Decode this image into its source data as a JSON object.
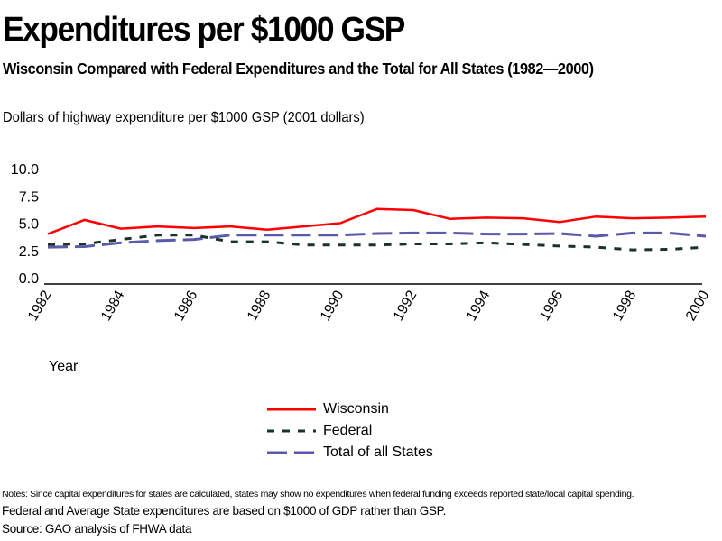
{
  "header": {
    "title": "Expenditures per $1000 GSP",
    "subtitle": "Wisconsin Compared with Federal Expenditures and the Total for All States (1982—2000)"
  },
  "footer": {
    "note1": "Notes: Since capital expenditures for states are calculated, states may show no expenditures when federal funding exceeds reported state/local capital spending.",
    "note2": "Federal and Average State expenditures are based on $1000 of GDP rather than GSP.",
    "source": "Source: GAO analysis of FHWA data"
  },
  "chart_data": {
    "type": "line",
    "title": "Expenditures per $1000 GSP",
    "subtitle": "Wisconsin Compared with Federal Expenditures and the Total for All States (1982—2000)",
    "ylabel": "Dollars of highway expenditure per $1000 GSP (2001 dollars)",
    "xlabel": "Year",
    "ylim": [
      0,
      10
    ],
    "yticks": [
      "0.0",
      "2.5",
      "5.0",
      "7.5",
      "10.0"
    ],
    "ytick_values": [
      0,
      2.5,
      5,
      7.5,
      10
    ],
    "x": [
      1982,
      1983,
      1984,
      1985,
      1986,
      1987,
      1988,
      1989,
      1990,
      1991,
      1992,
      1993,
      1994,
      1995,
      1996,
      1997,
      1998,
      1999,
      2000
    ],
    "xticks": [
      "1982",
      "1984",
      "1986",
      "1988",
      "1990",
      "1992",
      "1994",
      "1996",
      "1998",
      "2000"
    ],
    "grid": false,
    "legend_position": "bottom-center",
    "series": [
      {
        "name": "Wisconsin",
        "color": "#ff0000",
        "style": "solid",
        "values": [
          4.0,
          5.3,
          4.5,
          4.7,
          4.55,
          4.7,
          4.4,
          4.7,
          5.0,
          6.3,
          6.2,
          5.4,
          5.5,
          5.45,
          5.1,
          5.6,
          5.45,
          5.5,
          5.6
        ]
      },
      {
        "name": "Federal",
        "color": "#1a3326",
        "style": "short-dash",
        "values": [
          3.05,
          3.1,
          3.5,
          3.9,
          3.9,
          3.3,
          3.3,
          3.0,
          3.0,
          3.0,
          3.1,
          3.1,
          3.2,
          3.05,
          2.9,
          2.8,
          2.55,
          2.6,
          2.8
        ]
      },
      {
        "name": "Total of all States",
        "color": "#5a5aaa",
        "style": "long-dash",
        "values": [
          2.8,
          2.85,
          3.2,
          3.4,
          3.5,
          3.9,
          3.9,
          3.9,
          3.9,
          4.05,
          4.1,
          4.1,
          4.0,
          4.0,
          4.05,
          3.8,
          4.1,
          4.1,
          3.8
        ]
      }
    ]
  }
}
